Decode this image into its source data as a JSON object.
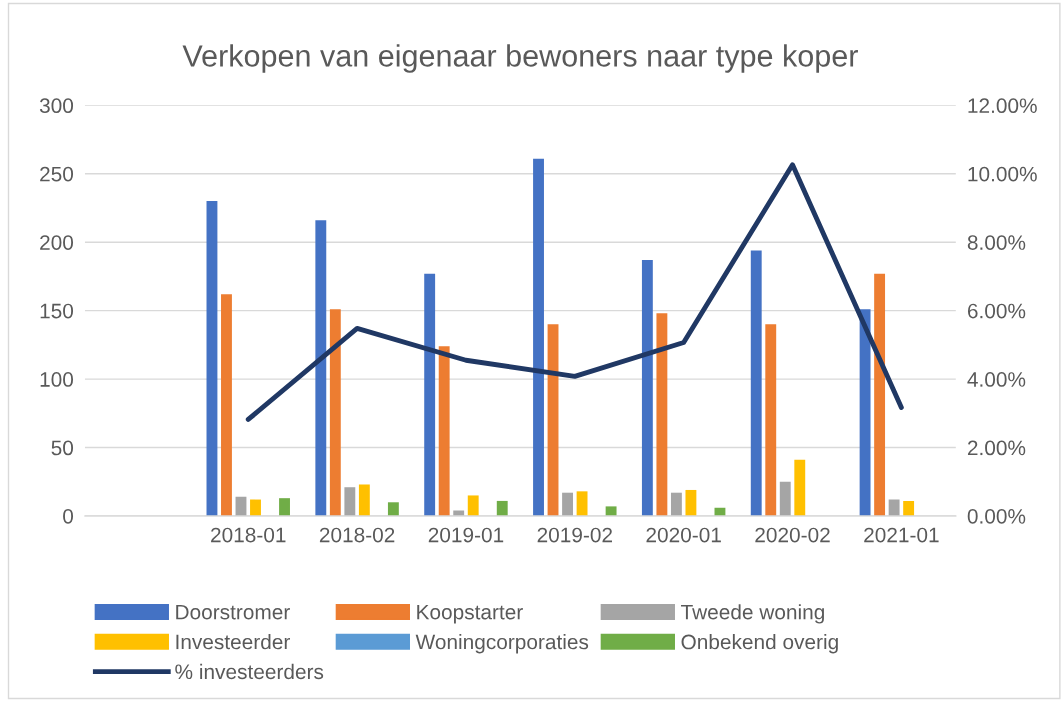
{
  "chart_data": {
    "type": "bar",
    "title": "Verkopen van eigenaar bewoners naar type koper",
    "categories": [
      null,
      "2018-01",
      "2018-02",
      "2019-01",
      "2019-02",
      "2020-01",
      "2020-02",
      "2021-01"
    ],
    "series": [
      {
        "name": "Doorstromer",
        "color": "#4472c4",
        "values": [
          null,
          230,
          216,
          177,
          261,
          187,
          194,
          151
        ]
      },
      {
        "name": "Koopstarter",
        "color": "#ed7d31",
        "values": [
          null,
          162,
          151,
          124,
          140,
          148,
          140,
          177
        ]
      },
      {
        "name": "Tweede woning",
        "color": "#a5a5a5",
        "values": [
          null,
          14,
          21,
          4,
          17,
          17,
          25,
          12
        ]
      },
      {
        "name": "Investeerder",
        "color": "#ffc000",
        "values": [
          null,
          12,
          23,
          15,
          18,
          19,
          41,
          11
        ]
      },
      {
        "name": "Woningcorporaties",
        "color": "#5b9bd5",
        "values": [
          null,
          null,
          null,
          null,
          null,
          null,
          null,
          null
        ]
      },
      {
        "name": "Onbekend overig",
        "color": "#70ad47",
        "values": [
          null,
          13,
          10,
          11,
          7,
          6,
          null,
          null
        ]
      },
      {
        "name": "% investeerders",
        "type": "line",
        "axis": "y2",
        "color": "#203864",
        "values": [
          null,
          2.82,
          5.48,
          4.55,
          4.08,
          5.07,
          10.26,
          3.17
        ]
      }
    ],
    "ylim": [
      0,
      300
    ],
    "yticks": [
      0,
      50,
      100,
      150,
      200,
      250,
      300
    ],
    "y2lim": [
      0,
      12
    ],
    "y2ticks": [
      {
        "value": 0,
        "label": "0.00%"
      },
      {
        "value": 2,
        "label": "2.00%"
      },
      {
        "value": 4,
        "label": "4.00%"
      },
      {
        "value": 6,
        "label": "6.00%"
      },
      {
        "value": 8,
        "label": "8.00%"
      },
      {
        "value": 10,
        "label": "10.00%"
      },
      {
        "value": 12,
        "label": "12.00%"
      }
    ],
    "grid": "y",
    "legend": "bottom"
  }
}
